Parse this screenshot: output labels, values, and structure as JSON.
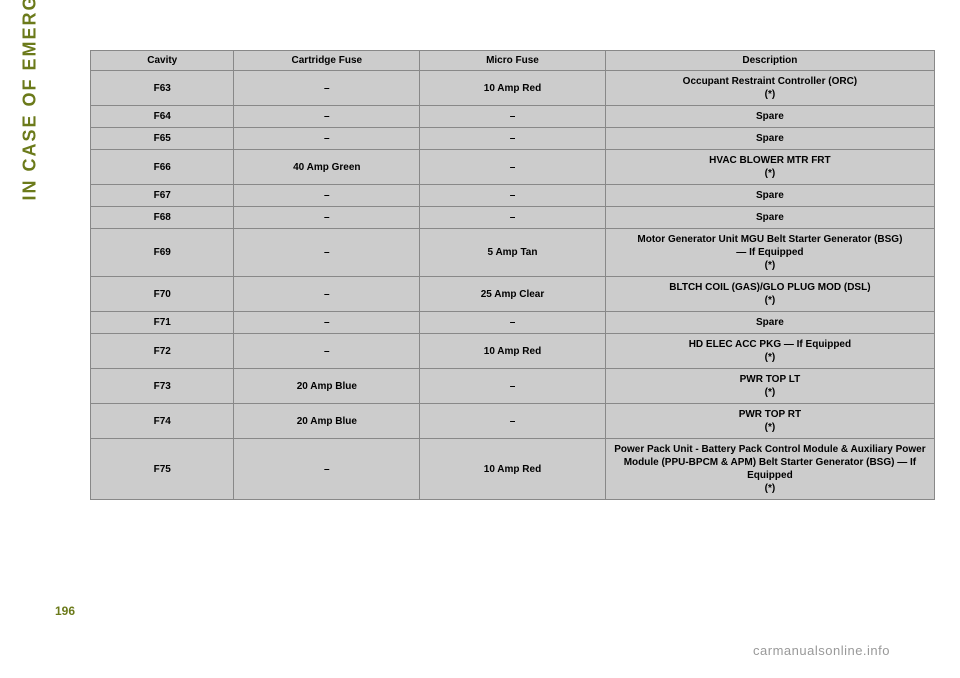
{
  "sidebar": {
    "section_label": "IN CASE OF EMERGENCY"
  },
  "page_number": "196",
  "watermark": "carmanualsonline.info",
  "table": {
    "headers": {
      "cavity": "Cavity",
      "cartridge": "Cartridge Fuse",
      "micro": "Micro Fuse",
      "description": "Description"
    },
    "rows": [
      {
        "cavity": "F63",
        "cartridge": "–",
        "micro": "10 Amp Red",
        "description": "Occupant Restraint Controller (ORC)\n(*)"
      },
      {
        "cavity": "F64",
        "cartridge": "–",
        "micro": "–",
        "description": "Spare"
      },
      {
        "cavity": "F65",
        "cartridge": "–",
        "micro": "–",
        "description": "Spare"
      },
      {
        "cavity": "F66",
        "cartridge": "40 Amp Green",
        "micro": "–",
        "description": "HVAC BLOWER MTR FRT\n(*)"
      },
      {
        "cavity": "F67",
        "cartridge": "–",
        "micro": "–",
        "description": "Spare"
      },
      {
        "cavity": "F68",
        "cartridge": "–",
        "micro": "–",
        "description": "Spare"
      },
      {
        "cavity": "F69",
        "cartridge": "–",
        "micro": "5 Amp Tan",
        "description": "Motor Generator Unit MGU Belt Starter Generator (BSG)\n— If Equipped\n(*)"
      },
      {
        "cavity": "F70",
        "cartridge": "–",
        "micro": "25 Amp Clear",
        "description": "BLTCH COIL (GAS)/GLO PLUG MOD (DSL)\n(*)"
      },
      {
        "cavity": "F71",
        "cartridge": "–",
        "micro": "–",
        "description": "Spare"
      },
      {
        "cavity": "F72",
        "cartridge": "–",
        "micro": "10 Amp Red",
        "description": "HD ELEC ACC PKG — If Equipped\n(*)"
      },
      {
        "cavity": "F73",
        "cartridge": "20 Amp Blue",
        "micro": "–",
        "description": "PWR TOP LT\n(*)"
      },
      {
        "cavity": "F74",
        "cartridge": "20 Amp Blue",
        "micro": "–",
        "description": "PWR TOP RT\n(*)"
      },
      {
        "cavity": "F75",
        "cartridge": "–",
        "micro": "10 Amp Red",
        "description": "Power Pack Unit - Battery Pack Control Module & Auxiliary Power Module (PPU-BPCM & APM) Belt Starter Generator (BSG) — If Equipped\n(*)"
      }
    ]
  },
  "styling": {
    "page_bg": "#ffffff",
    "accent_color": "#6b7a1a",
    "table_bg": "#cccccc",
    "table_border": "#888888",
    "text_color": "#000000",
    "watermark_color": "#999999",
    "header_fontsize": 10,
    "cell_fontsize": 10,
    "sidebar_fontsize": 18
  }
}
